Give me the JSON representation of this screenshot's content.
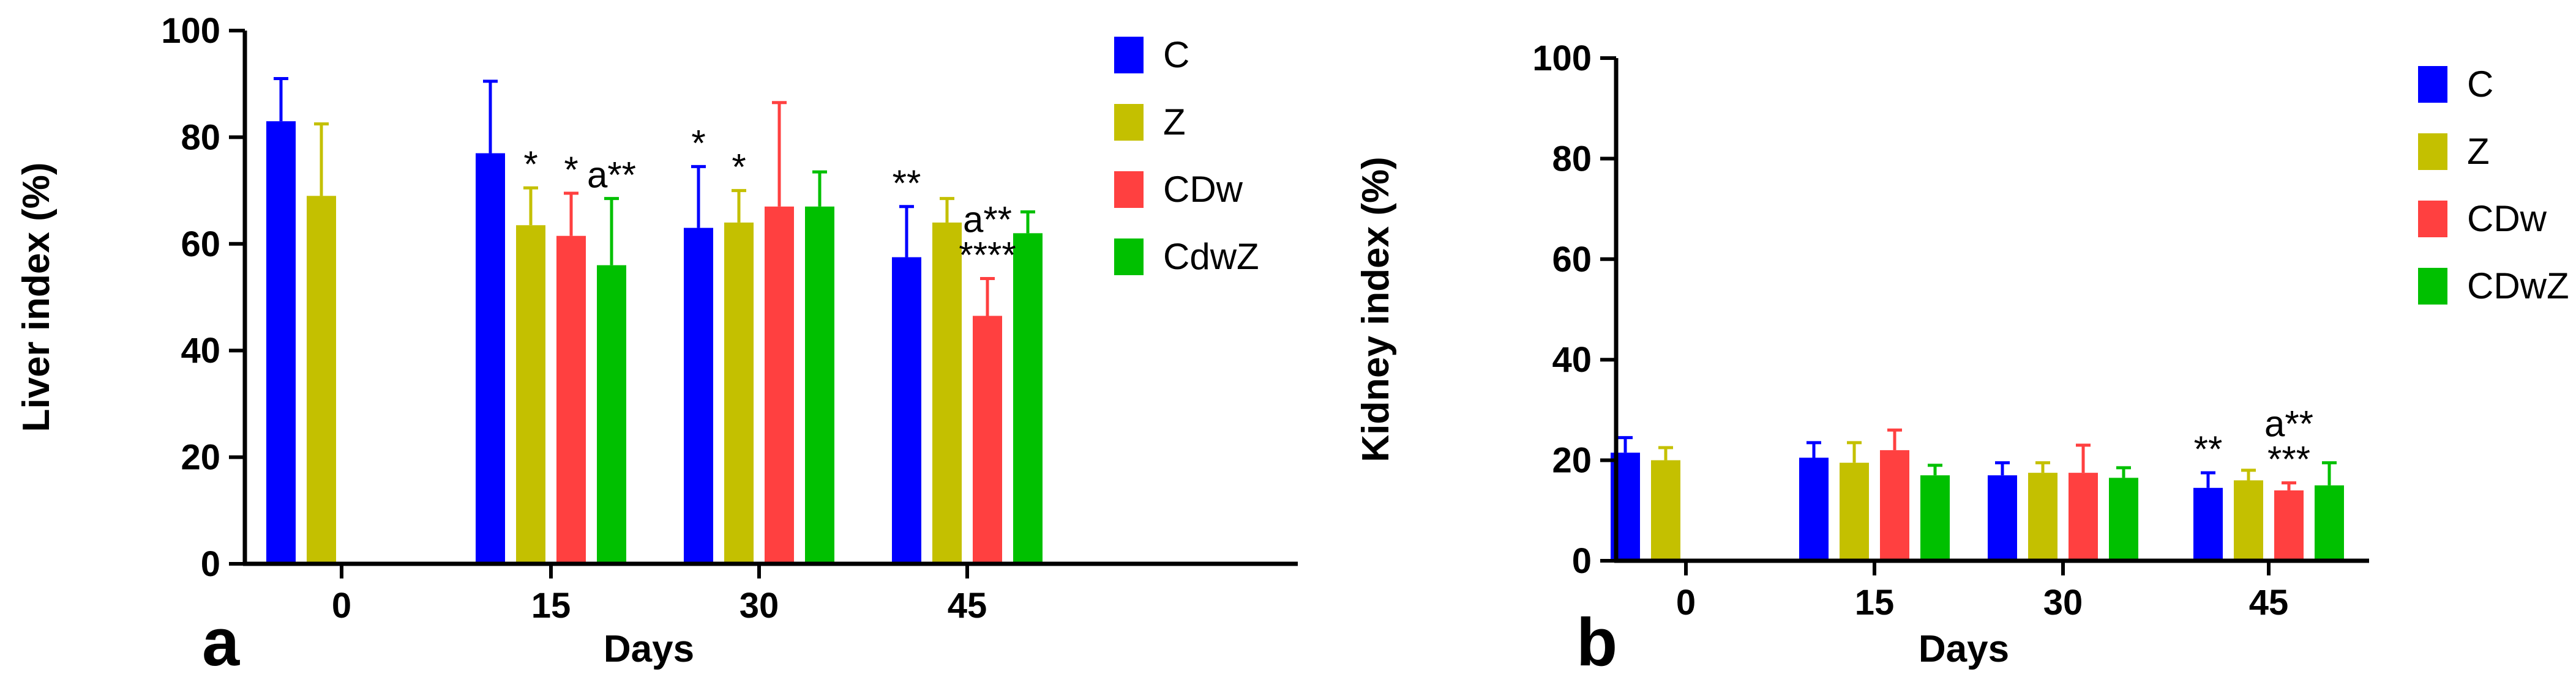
{
  "chart_data": [
    {
      "panel_label": "a",
      "type": "bar",
      "categories": [
        "0",
        "15",
        "30",
        "45"
      ],
      "xlabel": "Days",
      "ylabel": "Liver index (%)",
      "ylim": [
        0,
        100
      ],
      "yticks": [
        "0",
        "20",
        "40",
        "60",
        "80",
        "100"
      ],
      "legend_placement": "right",
      "grid": false,
      "series": [
        {
          "name": "C",
          "color": "#0000ff",
          "values": [
            83,
            77,
            63,
            57.5
          ],
          "errors": [
            8,
            13.5,
            11.5,
            9.5
          ]
        },
        {
          "name": "Z",
          "color": "#c4c000",
          "values": [
            69,
            63.5,
            64,
            64
          ],
          "errors": [
            13.5,
            7,
            6,
            4.5
          ]
        },
        {
          "name": "CDw",
          "color": "#ff4040",
          "values": [
            null,
            61.5,
            67,
            46.5
          ],
          "errors": [
            null,
            8,
            19.5,
            7
          ]
        },
        {
          "name": "CdwZ",
          "color": "#00c000",
          "values": [
            null,
            56,
            67,
            62
          ],
          "errors": [
            null,
            12.5,
            6.5,
            4
          ]
        }
      ],
      "annotations": [
        {
          "category": "15",
          "series": "Z",
          "lines": [
            "*"
          ]
        },
        {
          "category": "15",
          "series": "CDw",
          "lines": [
            "*"
          ]
        },
        {
          "category": "15",
          "series": "CdwZ",
          "lines": [
            "a**"
          ]
        },
        {
          "category": "30",
          "series": "C",
          "lines": [
            "*"
          ]
        },
        {
          "category": "30",
          "series": "Z",
          "lines": [
            "*"
          ]
        },
        {
          "category": "45",
          "series": "C",
          "lines": [
            "**"
          ]
        },
        {
          "category": "45",
          "series": "CDw",
          "lines": [
            "a**",
            "****"
          ]
        }
      ]
    },
    {
      "panel_label": "b",
      "type": "bar",
      "categories": [
        "0",
        "15",
        "30",
        "45"
      ],
      "xlabel": "Days",
      "ylabel": "Kidney index (%)",
      "ylim": [
        0,
        100
      ],
      "yticks": [
        "0",
        "20",
        "40",
        "60",
        "80",
        "100"
      ],
      "legend_placement": "right",
      "grid": false,
      "series": [
        {
          "name": "C",
          "color": "#0000ff",
          "values": [
            21.5,
            20.5,
            17,
            14.5
          ],
          "errors": [
            3,
            3,
            2.5,
            3
          ]
        },
        {
          "name": "Z",
          "color": "#c4c000",
          "values": [
            20,
            19.5,
            17.5,
            16
          ],
          "errors": [
            2.5,
            4,
            2,
            2
          ]
        },
        {
          "name": "CDw",
          "color": "#ff4040",
          "values": [
            null,
            22,
            17.5,
            14
          ],
          "errors": [
            null,
            4,
            5.5,
            1.5
          ]
        },
        {
          "name": "CDwZ",
          "color": "#00c000",
          "values": [
            null,
            17,
            16.5,
            15
          ],
          "errors": [
            null,
            2,
            2,
            4.5
          ]
        }
      ],
      "annotations": [
        {
          "category": "45",
          "series": "C",
          "lines": [
            "**"
          ]
        },
        {
          "category": "45",
          "series": "CDw",
          "lines": [
            "a**",
            "***"
          ]
        }
      ]
    }
  ]
}
